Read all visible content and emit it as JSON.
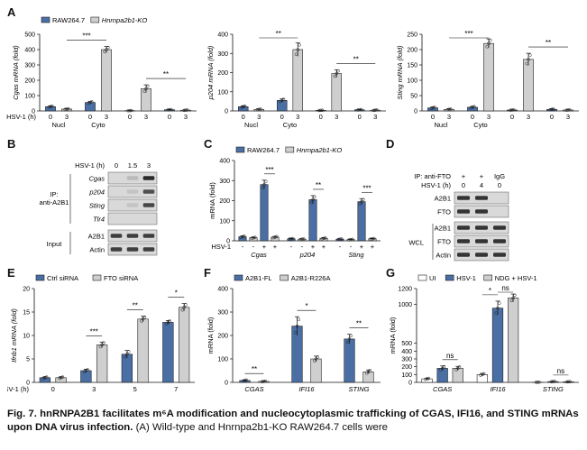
{
  "colors": {
    "blue": "#4a6fa5",
    "gray": "#cfcfcf",
    "white": "#ffffff",
    "blot_bg": "#d9d9d9",
    "band": "#161616"
  },
  "panel_labels": [
    "A",
    "B",
    "C",
    "D",
    "E",
    "F",
    "G"
  ],
  "panel_b": {
    "hsv_label": "HSV-1 (h)",
    "timepoints": [
      "0",
      "1.5",
      "3"
    ],
    "ip_label": "IP:\nanti-A2B1",
    "input_label": "Input",
    "ip_rows": [
      {
        "label": "Cgas",
        "bands": [
          0,
          0.15,
          0.9
        ]
      },
      {
        "label": "p204",
        "bands": [
          0,
          0.1,
          0.7
        ]
      },
      {
        "label": "Sting",
        "bands": [
          0,
          0.1,
          0.75
        ]
      },
      {
        "label": "Tlr4",
        "bands": [
          0,
          0,
          0
        ]
      }
    ],
    "input_rows": [
      {
        "label": "A2B1",
        "bands": [
          0.8,
          0.8,
          0.8
        ]
      },
      {
        "label": "Actin",
        "bands": [
          0.8,
          0.8,
          0.8
        ]
      }
    ]
  },
  "panel_d": {
    "ip_label": "IP: anti-FTO",
    "ip_signs": [
      "+",
      "+",
      "IgG"
    ],
    "hsv_label": "HSV-1 (h)",
    "timepoints": [
      "0",
      "4",
      "0"
    ],
    "wcl_label": "WCL",
    "ip_rows": [
      {
        "label": "A2B1",
        "bands": [
          0.85,
          0.85,
          0
        ]
      },
      {
        "label": "FTO",
        "bands": [
          0.85,
          0.85,
          0
        ]
      }
    ],
    "wcl_rows": [
      {
        "label": "A2B1",
        "bands": [
          0.85,
          0.85,
          0.85
        ]
      },
      {
        "label": "FTO",
        "bands": [
          0.85,
          0.85,
          0.85
        ]
      },
      {
        "label": "Actin",
        "bands": [
          0.85,
          0.85,
          0.85
        ]
      }
    ]
  },
  "chart_data": [
    {
      "id": "A1",
      "type": "bar",
      "ylabel": "Cgas mRNA (fold)",
      "ylim": [
        0,
        500
      ],
      "yticks": [
        0,
        100,
        200,
        300,
        400,
        500
      ],
      "xlabel": "HSV-1 (h)",
      "xticks": [
        "0",
        "3",
        "0",
        "3",
        "0",
        "3",
        "0",
        "3"
      ],
      "groups": [
        "Nucl",
        "Cyto"
      ],
      "legend": [
        "RAW264.7",
        "Hnrnpa2b1-KO"
      ],
      "series_pattern": [
        "blue",
        "gray",
        "blue",
        "gray",
        "blue",
        "gray",
        "blue",
        "gray"
      ],
      "values": [
        28,
        12,
        55,
        400,
        2,
        145,
        8,
        5
      ],
      "errors": [
        5,
        3,
        8,
        20,
        1,
        25,
        2,
        2
      ],
      "annotations": [
        {
          "text": "***",
          "from": 1,
          "to": 3
        },
        {
          "text": "**",
          "from": 5,
          "to": 7
        }
      ]
    },
    {
      "id": "A2",
      "type": "bar",
      "ylabel": "p204 mRNA (fold)",
      "ylim": [
        0,
        400
      ],
      "yticks": [
        0,
        100,
        200,
        300,
        400
      ],
      "xlabel": "",
      "xticks": [
        "0",
        "3",
        "0",
        "3",
        "0",
        "3",
        "0",
        "3"
      ],
      "groups": [
        "Nucl",
        "Cyto"
      ],
      "series_pattern": [
        "blue",
        "gray",
        "blue",
        "gray",
        "blue",
        "gray",
        "blue",
        "gray"
      ],
      "values": [
        22,
        8,
        55,
        320,
        3,
        195,
        6,
        4
      ],
      "errors": [
        5,
        2,
        8,
        35,
        1,
        20,
        2,
        2
      ],
      "annotations": [
        {
          "text": "**",
          "from": 1,
          "to": 3
        },
        {
          "text": "**",
          "from": 5,
          "to": 7
        }
      ]
    },
    {
      "id": "A3",
      "type": "bar",
      "ylabel": "Sting mRNA (fold)",
      "ylim": [
        0,
        250
      ],
      "yticks": [
        0,
        50,
        100,
        150,
        200,
        250
      ],
      "xlabel": "",
      "xticks": [
        "0",
        "3",
        "0",
        "3",
        "0",
        "3",
        "0",
        "3"
      ],
      "groups": [
        "Nucl",
        "Cyto"
      ],
      "series_pattern": [
        "blue",
        "gray",
        "blue",
        "gray",
        "blue",
        "gray",
        "blue",
        "gray"
      ],
      "values": [
        10,
        5,
        12,
        220,
        3,
        168,
        5,
        3
      ],
      "errors": [
        3,
        2,
        3,
        15,
        1,
        20,
        2,
        1
      ],
      "annotations": [
        {
          "text": "***",
          "from": 1,
          "to": 3
        },
        {
          "text": "**",
          "from": 5,
          "to": 7
        }
      ]
    },
    {
      "id": "C",
      "type": "bar",
      "ylabel": "mRNA (fold)",
      "ylim": [
        0,
        400
      ],
      "yticks": [
        0,
        100,
        200,
        300,
        400
      ],
      "xlabel": "HSV-1",
      "xticks": [
        "-",
        "-",
        "+",
        "+",
        "-",
        "-",
        "+",
        "+",
        "-",
        "-",
        "+",
        "+"
      ],
      "groups": [
        "Cgas",
        "p204",
        "Sting"
      ],
      "legend": [
        "RAW264.7",
        "Hnrnpa2b1-KO"
      ],
      "series_pattern": [
        "blue",
        "gray",
        "blue",
        "gray",
        "blue",
        "gray",
        "blue",
        "gray",
        "blue",
        "gray",
        "blue",
        "gray"
      ],
      "values": [
        20,
        15,
        280,
        18,
        10,
        8,
        205,
        12,
        8,
        6,
        195,
        10
      ],
      "errors": [
        4,
        3,
        22,
        4,
        2,
        2,
        20,
        3,
        2,
        2,
        15,
        2
      ],
      "annotations": [
        {
          "text": "***",
          "from": 2,
          "to": 3
        },
        {
          "text": "**",
          "from": 6,
          "to": 7
        },
        {
          "text": "***",
          "from": 10,
          "to": 11
        }
      ]
    },
    {
      "id": "E",
      "type": "bar",
      "ylabel": "Ifnb1 mRNA (fold)",
      "ylim": [
        0,
        20
      ],
      "yticks": [
        0,
        5,
        10,
        15,
        20
      ],
      "xlabel": "HSV-1 (h)",
      "xticks": [],
      "groups": [
        "0",
        "3",
        "5",
        "7"
      ],
      "legend": [
        "Ctrl siRNA",
        "FTO siRNA"
      ],
      "series_pattern": [
        "blue",
        "gray",
        "blue",
        "gray",
        "blue",
        "gray",
        "blue",
        "gray"
      ],
      "values": [
        1,
        1,
        2.5,
        8,
        6,
        13.5,
        12.8,
        16
      ],
      "errors": [
        0.2,
        0.2,
        0.3,
        0.6,
        0.8,
        0.6,
        0.4,
        0.8
      ],
      "annotations": [
        {
          "text": "***",
          "from": 2,
          "to": 3
        },
        {
          "text": "**",
          "from": 4,
          "to": 5
        },
        {
          "text": "*",
          "from": 6,
          "to": 7
        }
      ]
    },
    {
      "id": "F",
      "type": "bar",
      "ylabel": "mRNA (fold)",
      "ylim": [
        0,
        400
      ],
      "yticks": [
        0,
        100,
        200,
        300,
        400
      ],
      "xlabel": "",
      "xticks": [],
      "groups": [
        "CGAS",
        "IFI16",
        "STING"
      ],
      "legend": [
        "A2B1-FL",
        "A2B1-R226A"
      ],
      "series_pattern": [
        "blue",
        "gray",
        "blue",
        "gray",
        "blue",
        "gray"
      ],
      "values": [
        8,
        4,
        240,
        100,
        185,
        45
      ],
      "errors": [
        3,
        2,
        40,
        12,
        20,
        8
      ],
      "annotations": [
        {
          "text": "**",
          "from": 0,
          "to": 1
        },
        {
          "text": "*",
          "from": 2,
          "to": 3
        },
        {
          "text": "**",
          "from": 4,
          "to": 5
        }
      ]
    },
    {
      "id": "G",
      "type": "bar",
      "ylabel": "mRNA (fold)",
      "ylim": [
        0,
        1200
      ],
      "yticks": [
        0,
        100,
        200,
        300,
        400,
        500,
        1000,
        1200
      ],
      "xlabel": "",
      "xticks": [],
      "groups": [
        "CGAS",
        "IFI16",
        "STING"
      ],
      "legend": [
        "UI",
        "HSV-1",
        "NDG + HSV-1"
      ],
      "series_pattern": [
        "white",
        "blue",
        "gray",
        "white",
        "blue",
        "gray",
        "white",
        "blue",
        "gray"
      ],
      "values": [
        45,
        180,
        180,
        100,
        950,
        1080,
        2,
        10,
        8
      ],
      "errors": [
        10,
        30,
        25,
        15,
        90,
        50,
        1,
        3,
        2
      ],
      "annotations": [
        {
          "text": "ns",
          "from": 1,
          "to": 2
        },
        {
          "text": "ns",
          "from": 4,
          "to": 5
        },
        {
          "text": "*",
          "from": 3,
          "to": 4
        },
        {
          "text": "ns",
          "from": 7,
          "to": 8
        }
      ]
    }
  ],
  "caption": {
    "bold": "Fig. 7. hnRNPA2B1 facilitates m⁶A modification and nucleocytoplasmic trafficking of CGAS, IFI16, and STING mRNAs upon DNA virus infection.",
    "body": "(A) Wild-type and Hnrnpa2b1-KO RAW264.7 cells were"
  }
}
